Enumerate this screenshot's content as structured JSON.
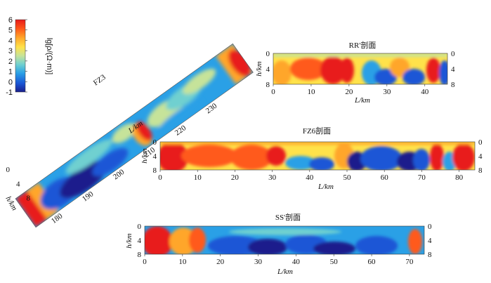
{
  "colorbar": {
    "ticks": [
      "6",
      "5",
      "4",
      "3",
      "2",
      "1",
      "0",
      "-1"
    ],
    "label": "lg[ρ/(Ω·m)]",
    "stops": [
      "#1a1f8c",
      "#1a56d6",
      "#2aa0e6",
      "#6fd0d0",
      "#c6e39a",
      "#ffe24a",
      "#ffa62a",
      "#ff5a1a",
      "#e81a1a"
    ]
  },
  "oblique": {
    "title": "FZ3",
    "km_ticks": [
      "180",
      "190",
      "200",
      "210",
      "220",
      "230"
    ],
    "depth_ticks": [
      "0",
      "4",
      "8"
    ],
    "km_axis_label": "L/km",
    "depth_axis_label": "h/km"
  },
  "profiles": [
    {
      "id": "rr",
      "title": "RR'剖面",
      "x_ticks": [
        "0",
        "10",
        "20",
        "30",
        "40"
      ],
      "depth_ticks": [
        "0",
        "4",
        "8"
      ],
      "x_axis_label": "L/km",
      "depth_axis_label": "h/km"
    },
    {
      "id": "fz6",
      "title": "FZ6剖面",
      "x_ticks": [
        "0",
        "10",
        "20",
        "30",
        "40",
        "50",
        "60",
        "70",
        "80"
      ],
      "depth_ticks": [
        "0",
        "4",
        "8"
      ],
      "x_axis_label": "L/km",
      "depth_axis_label": "h/km"
    },
    {
      "id": "ss",
      "title": "SS'剖面",
      "x_ticks": [
        "0",
        "10",
        "20",
        "30",
        "40",
        "50",
        "60",
        "70"
      ],
      "depth_ticks": [
        "0",
        "4",
        "8"
      ],
      "x_axis_label": "L/km",
      "depth_axis_label": "h/km"
    }
  ]
}
